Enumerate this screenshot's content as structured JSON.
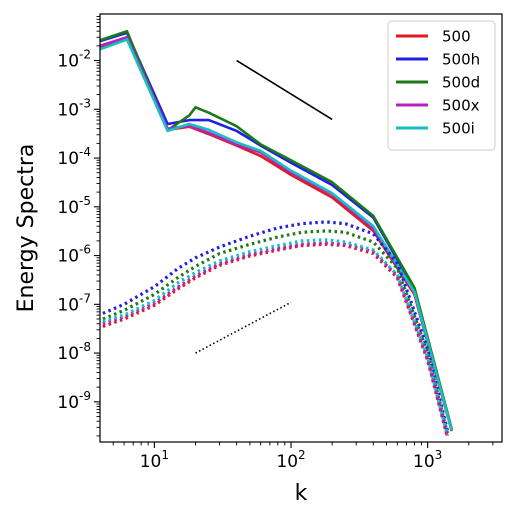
{
  "chart_data": {
    "type": "line",
    "title": "",
    "xlabel": "k",
    "ylabel": "Energy Spectra",
    "xscale": "log",
    "yscale": "log",
    "xlim": [
      4,
      3500
    ],
    "ylim": [
      1.5e-10,
      0.09
    ],
    "grid": false,
    "legend": "top-right",
    "x_ticks": [
      {
        "value": 10,
        "base": "10",
        "exp": "1"
      },
      {
        "value": 100,
        "base": "10",
        "exp": "2"
      },
      {
        "value": 1000,
        "base": "10",
        "exp": "3"
      }
    ],
    "y_ticks": [
      {
        "value": 0.01,
        "base": "10",
        "exp": "-2"
      },
      {
        "value": 0.001,
        "base": "10",
        "exp": "-3"
      },
      {
        "value": 0.0001,
        "base": "10",
        "exp": "-4"
      },
      {
        "value": 1e-05,
        "base": "10",
        "exp": "-5"
      },
      {
        "value": 1e-06,
        "base": "10",
        "exp": "-6"
      },
      {
        "value": 1e-07,
        "base": "10",
        "exp": "-7"
      },
      {
        "value": 1e-08,
        "base": "10",
        "exp": "-8"
      },
      {
        "value": 1e-09,
        "base": "10",
        "exp": "-9"
      }
    ],
    "series": [
      {
        "name": "500",
        "color": "#e31a1c",
        "style": "solid",
        "x": [
          4,
          6.3,
          12.5,
          18,
          25,
          40,
          60,
          100,
          200,
          400,
          800,
          1500
        ],
        "y": [
          0.019,
          0.029,
          0.00038,
          0.00044,
          0.00031,
          0.00018,
          0.00011,
          4.5e-05,
          1.55e-05,
          3.2e-06,
          1.6e-07,
          2.5e-10
        ]
      },
      {
        "name": "500h",
        "color": "#1f1fe8",
        "style": "solid",
        "x": [
          4,
          6.3,
          12.5,
          18,
          25,
          40,
          60,
          100,
          200,
          400,
          800,
          1500
        ],
        "y": [
          0.025,
          0.037,
          0.0005,
          0.0006,
          0.0006,
          0.00036,
          0.00018,
          8e-05,
          2.8e-05,
          6e-06,
          2e-07,
          2.7e-10
        ]
      },
      {
        "name": "500d",
        "color": "#1a7a1a",
        "style": "solid",
        "x": [
          4,
          6.3,
          12.5,
          18,
          20,
          25,
          40,
          60,
          100,
          200,
          400,
          800,
          1500
        ],
        "y": [
          0.026,
          0.04,
          0.00037,
          0.00075,
          0.0011,
          0.00085,
          0.00045,
          0.00019,
          9e-05,
          3.2e-05,
          6.5e-06,
          2.2e-07,
          2.8e-10
        ]
      },
      {
        "name": "500x",
        "color": "#b422c0",
        "style": "solid",
        "x": [
          4,
          6.3,
          12.5,
          18,
          25,
          40,
          60,
          100,
          200,
          400,
          800,
          1500
        ],
        "y": [
          0.02,
          0.03,
          0.0004,
          0.00046,
          0.00033,
          0.00019,
          0.00013,
          5e-05,
          1.8e-05,
          3.6e-06,
          1.7e-07,
          2.6e-10
        ]
      },
      {
        "name": "500i",
        "color": "#17bfbf",
        "style": "solid",
        "x": [
          4,
          6.3,
          12.5,
          18,
          25,
          40,
          60,
          100,
          200,
          400,
          800,
          1500
        ],
        "y": [
          0.017,
          0.027,
          0.00036,
          0.0005,
          0.00038,
          0.00021,
          0.00014,
          5.5e-05,
          1.9e-05,
          4e-06,
          1.8e-07,
          2.6e-10
        ]
      },
      {
        "name": "",
        "color": "#e31a1c",
        "style": "dotted",
        "x": [
          4.2,
          6,
          10,
          15,
          20,
          30,
          50,
          80,
          120,
          180,
          250,
          400,
          600,
          1000,
          1400
        ],
        "y": [
          3.5e-08,
          5e-08,
          9.5e-08,
          2.1e-07,
          3.5e-07,
          6.3e-07,
          9.8e-07,
          1.3e-06,
          1.6e-06,
          1.7e-06,
          1.6e-06,
          1.1e-06,
          3.5e-07,
          7e-09,
          1.8e-10
        ]
      },
      {
        "name": "",
        "color": "#1f1fe8",
        "style": "dotted",
        "x": [
          4.2,
          6,
          10,
          15,
          20,
          30,
          50,
          80,
          120,
          180,
          250,
          400,
          600,
          1000,
          1400
        ],
        "y": [
          6.5e-08,
          1e-07,
          2.3e-07,
          5.5e-07,
          9e-07,
          1.5e-06,
          2.5e-06,
          3.7e-06,
          4.5e-06,
          4.9e-06,
          4.5e-06,
          2.8e-06,
          7e-07,
          1.2e-08,
          2.5e-10
        ]
      },
      {
        "name": "",
        "color": "#1a7a1a",
        "style": "dotted",
        "x": [
          4.2,
          6,
          10,
          15,
          20,
          30,
          50,
          80,
          120,
          180,
          250,
          400,
          600,
          1000,
          1400
        ],
        "y": [
          5e-08,
          7.5e-08,
          1.6e-07,
          3.6e-07,
          6e-07,
          1.1e-06,
          1.7e-06,
          2.4e-06,
          3e-06,
          3.2e-06,
          3e-06,
          1.9e-06,
          5.5e-07,
          1e-08,
          2.2e-10
        ]
      },
      {
        "name": "",
        "color": "#b422c0",
        "style": "dotted",
        "x": [
          4.2,
          6,
          10,
          15,
          20,
          30,
          50,
          80,
          120,
          180,
          250,
          400,
          600,
          1000,
          1400
        ],
        "y": [
          4e-08,
          5.5e-08,
          1.05e-07,
          2.3e-07,
          3.8e-07,
          6.8e-07,
          1.05e-06,
          1.4e-06,
          1.7e-06,
          1.8e-06,
          1.7e-06,
          1.2e-06,
          3.8e-07,
          7.5e-09,
          1.9e-10
        ]
      },
      {
        "name": "",
        "color": "#17bfbf",
        "style": "dotted",
        "x": [
          4.2,
          6,
          10,
          15,
          20,
          30,
          50,
          80,
          120,
          180,
          250,
          400,
          600,
          1000,
          1400
        ],
        "y": [
          4.5e-08,
          6e-08,
          1.2e-07,
          2.8e-07,
          4.5e-07,
          7.8e-07,
          1.2e-06,
          1.6e-06,
          2e-06,
          2.1e-06,
          1.9e-06,
          1.3e-06,
          4e-07,
          8e-09,
          2e-10
        ]
      }
    ],
    "reference_lines": [
      {
        "style": "solid",
        "color": "#000000",
        "x": [
          40,
          200
        ],
        "y": [
          0.01,
          0.00062
        ]
      },
      {
        "style": "dotted",
        "color": "#000000",
        "x": [
          20,
          100
        ],
        "y": [
          1e-08,
          1.1e-07
        ]
      }
    ]
  }
}
